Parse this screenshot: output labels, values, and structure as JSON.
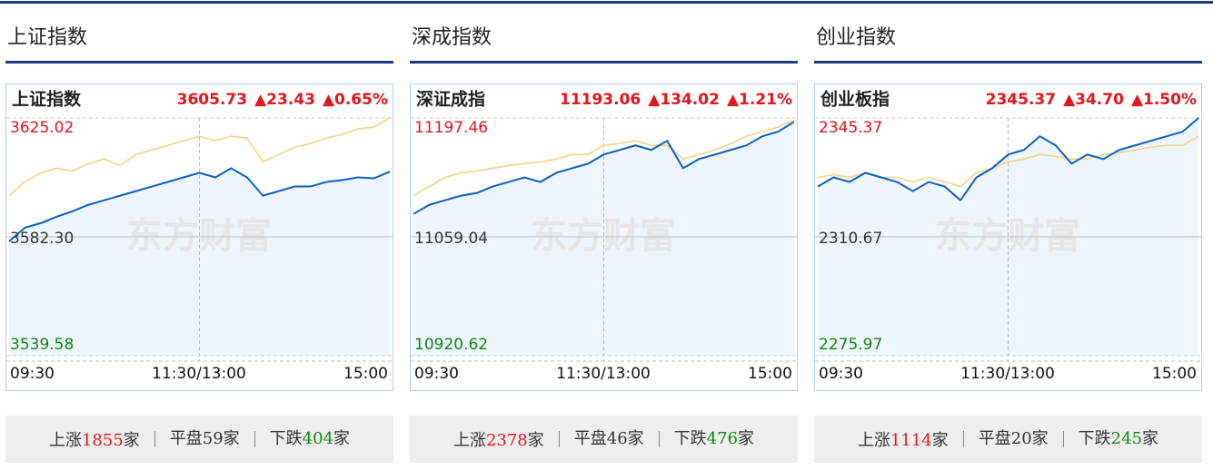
{
  "panels": [
    {
      "title": "上证指数",
      "chart": {
        "type": "line",
        "name": "上证指数",
        "price": "3605.73",
        "change": "▲23.43",
        "pct": "▲0.65%",
        "watermark": "东方财富",
        "ylim": [
          3539.58,
          3625.02
        ],
        "yticks": [
          3539.58,
          {
            "value": 3582.3,
            "label": "3582.30"
          },
          3625.02
        ],
        "xticks": [
          "09:30",
          "11:30/13:00",
          "15:00"
        ],
        "series": [
          {
            "color": "#f0d383",
            "values": [
              3597.09,
              3602.02,
              3605.3,
              3606.95,
              3605.96,
              3608.59,
              3610.23,
              3607.93,
              3611.88,
              3613.52,
              3615.16,
              3616.81,
              3618.45,
              3616.81,
              3618.45,
              3617.79,
              3609.25,
              3611.88,
              3614.5,
              3615.82,
              3617.79,
              3619.1,
              3621.08,
              3621.73,
              3625.02
            ]
          },
          {
            "color": "#0b5fc0",
            "values": [
              3580.66,
              3585.59,
              3587.23,
              3589.53,
              3591.5,
              3593.8,
              3595.45,
              3597.09,
              3598.73,
              3600.38,
              3602.02,
              3603.66,
              3605.3,
              3603.66,
              3606.95,
              3603.66,
              3597.09,
              3598.73,
              3600.38,
              3600.38,
              3602.02,
              3602.68,
              3603.66,
              3603.33,
              3605.73
            ]
          }
        ]
      },
      "stats": [
        {
          "label": "上涨",
          "count": 1855,
          "unit": "家"
        },
        {
          "label": "平盘",
          "count": 59,
          "unit": "家"
        },
        {
          "label": "下跌",
          "count": 404,
          "unit": "家"
        }
      ]
    },
    {
      "title": "深成指数",
      "chart": {
        "type": "line",
        "name": "深证成指",
        "price": "11193.06",
        "change": "▲134.02",
        "pct": "▲1.21%",
        "watermark": "东方财富",
        "ylim": [
          10920.62,
          11197.46
        ],
        "yticks": [
          10920.62,
          11059.04,
          11197.46
        ],
        "xticks": [
          "09:30",
          "11:30/13:00",
          "15:00"
        ],
        "series": [
          {
            "color": "#f0d383",
            "values": [
              11106.95,
              11117.6,
              11128.25,
              11133.57,
              11135.7,
              11138.9,
              11142.09,
              11144.22,
              11146.35,
              11149.55,
              11154.87,
              11154.87,
              11165.52,
              11167.65,
              11170.84,
              11165.52,
              11165.52,
              11149.55,
              11154.87,
              11160.19,
              11167.65,
              11176.16,
              11181.49,
              11186.81,
              11195.33
            ]
          },
          {
            "color": "#0b5fc0",
            "values": [
              11085.66,
              11096.3,
              11101.63,
              11106.95,
              11110.15,
              11117.6,
              11122.93,
              11128.25,
              11122.93,
              11133.57,
              11138.9,
              11144.22,
              11154.87,
              11160.19,
              11165.52,
              11160.19,
              11170.84,
              11138.9,
              11149.55,
              11154.87,
              11160.19,
              11165.52,
              11176.16,
              11181.49,
              11193.06
            ]
          }
        ]
      },
      "stats": [
        {
          "label": "上涨",
          "count": 2378,
          "unit": "家"
        },
        {
          "label": "平盘",
          "count": 46,
          "unit": "家"
        },
        {
          "label": "下跌",
          "count": 476,
          "unit": "家"
        }
      ]
    },
    {
      "title": "创业指数",
      "chart": {
        "type": "line",
        "name": "创业板指",
        "price": "2345.37",
        "change": "▲34.70",
        "pct": "▲1.50%",
        "watermark": "东方财富",
        "ylim": [
          2275.97,
          2345.37
        ],
        "yticks": [
          2275.97,
          2310.67,
          2345.37
        ],
        "xticks": [
          "09:30",
          "11:30/13:00",
          "15:00"
        ],
        "series": [
          {
            "color": "#f0d383",
            "values": [
              2328.02,
              2328.82,
              2328.02,
              2329.35,
              2328.02,
              2328.02,
              2326.69,
              2328.02,
              2326.69,
              2325.35,
              2329.35,
              2330.69,
              2332.56,
              2333.36,
              2334.69,
              2334.16,
              2333.36,
              2333.36,
              2334.69,
              2335.23,
              2336.03,
              2336.83,
              2337.36,
              2337.36,
              2340.03
            ]
          },
          {
            "color": "#0b5fc0",
            "values": [
              2325.35,
              2328.02,
              2326.69,
              2329.35,
              2328.02,
              2326.69,
              2324.02,
              2326.69,
              2325.35,
              2321.35,
              2328.02,
              2330.69,
              2334.69,
              2336.03,
              2340.03,
              2337.36,
              2332.02,
              2334.69,
              2333.36,
              2336.03,
              2337.36,
              2338.7,
              2340.03,
              2341.37,
              2345.37
            ]
          }
        ]
      },
      "stats": [
        {
          "label": "上涨",
          "count": 1114,
          "unit": "家"
        },
        {
          "label": "平盘",
          "count": 20,
          "unit": "家"
        },
        {
          "label": "下跌",
          "count": 245,
          "unit": "家"
        }
      ]
    }
  ]
}
